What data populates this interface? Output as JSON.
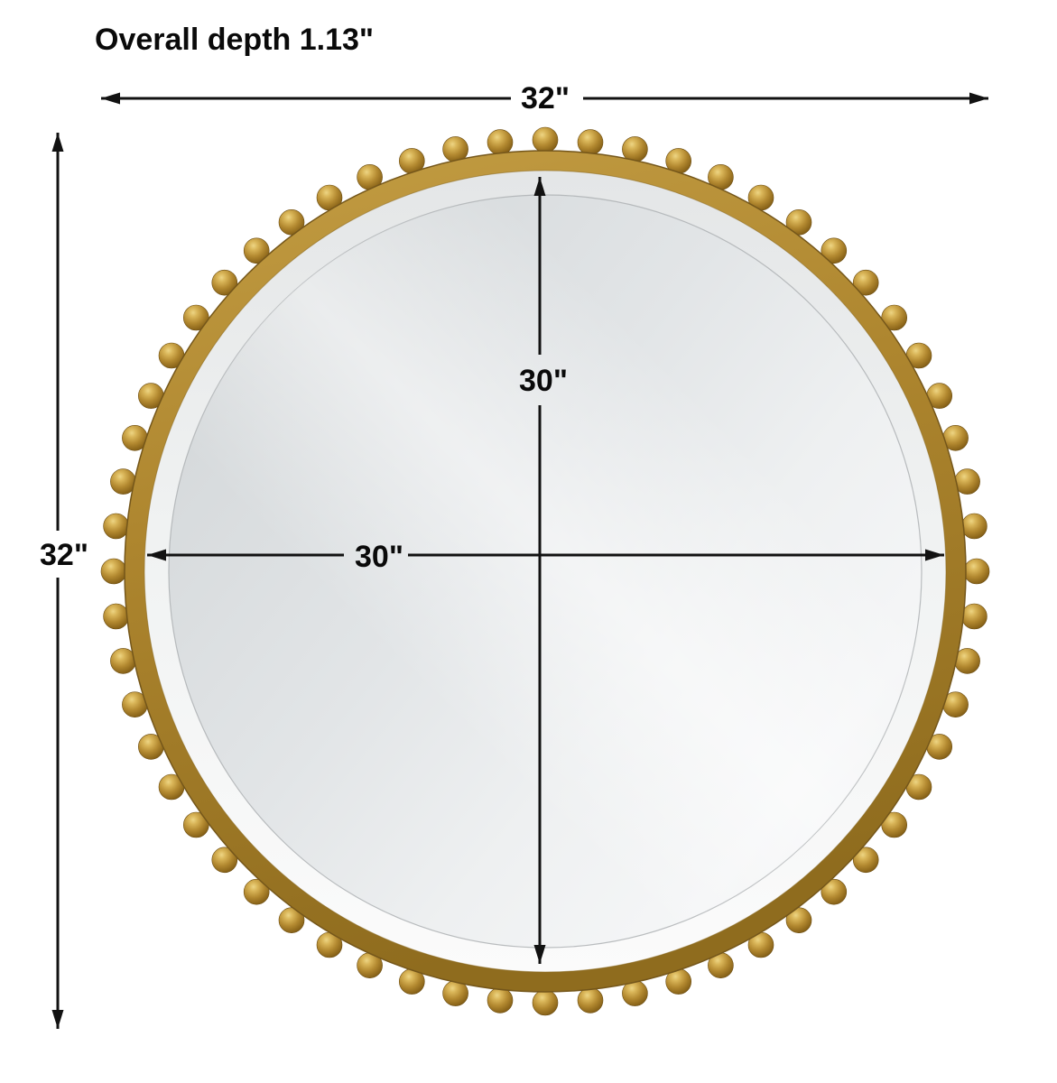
{
  "labels": {
    "overall_depth": "Overall depth 1.13\"",
    "overall_width": "32\"",
    "overall_height": "32\"",
    "inner_width": "30\"",
    "inner_height": "30\""
  },
  "mirror": {
    "description": "round-gold-beaded-frame-mirror",
    "bead_count": 60
  },
  "colors": {
    "background": "#ffffff",
    "dimension_line": "#121212",
    "text": "#0a0a0a",
    "gold_light": "#d9b558",
    "gold_mid": "#a9822c",
    "gold_dark": "#6b4c10",
    "glass_light": "#f5f6f7",
    "glass_dark": "#d2d6d8",
    "bevel_white": "#fbfbfb"
  }
}
